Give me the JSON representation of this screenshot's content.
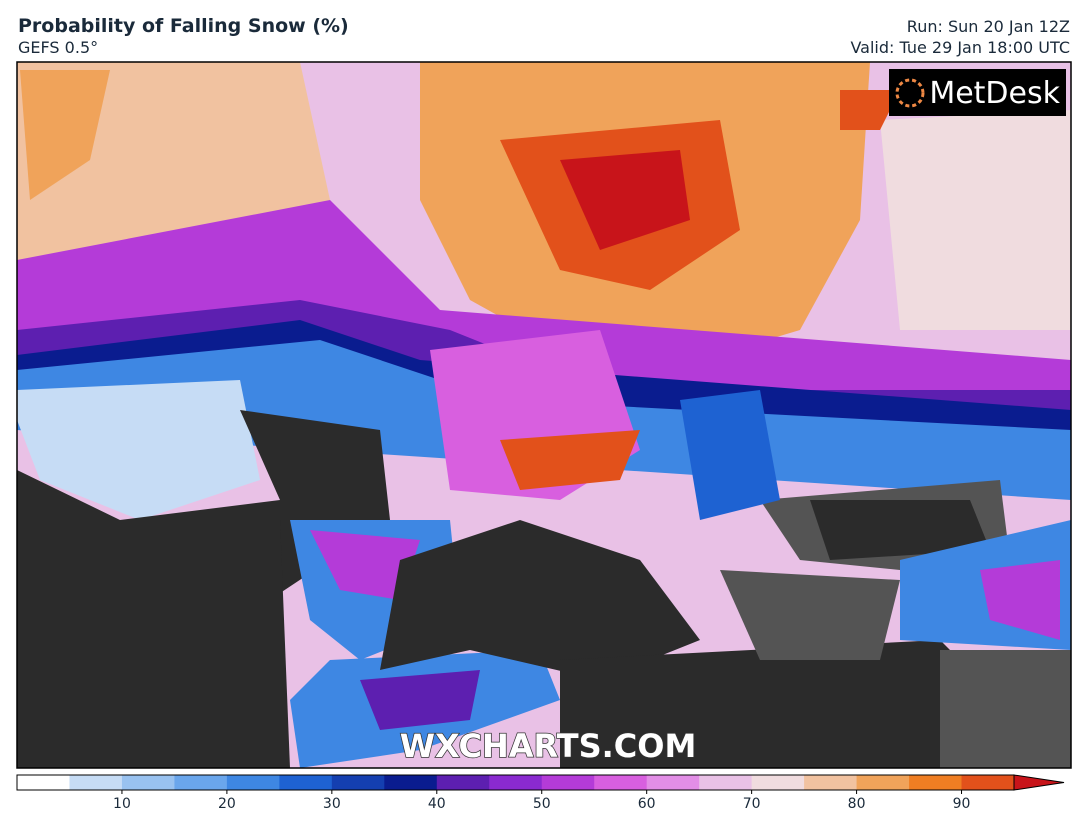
{
  "header": {
    "title": "Probability of Falling Snow (%)",
    "subtitle": "GEFS 0.5°",
    "run": "Run: Sun 20 Jan 12Z",
    "valid": "Valid: Tue 29 Jan 18:00 UTC"
  },
  "map": {
    "logo": "MetDesk",
    "watermark": "WXCHARTS.COM"
  },
  "colorbar": {
    "range": [
      0,
      95
    ],
    "ticks": [
      10,
      20,
      30,
      40,
      50,
      60,
      70,
      80,
      90
    ],
    "colors": [
      "#ffffff",
      "#c6dcf5",
      "#99c2f0",
      "#6aa6ec",
      "#3e87e3",
      "#1e62d2",
      "#143fb0",
      "#0a1c8f",
      "#5d1fb0",
      "#8a2ad0",
      "#b43bd8",
      "#d85fdf",
      "#e28ee6",
      "#e9c1e6",
      "#f0dcdf",
      "#f1c2a0",
      "#f0a35a",
      "#ef7e23",
      "#e2511b"
    ],
    "over_color": "#c8141a"
  }
}
